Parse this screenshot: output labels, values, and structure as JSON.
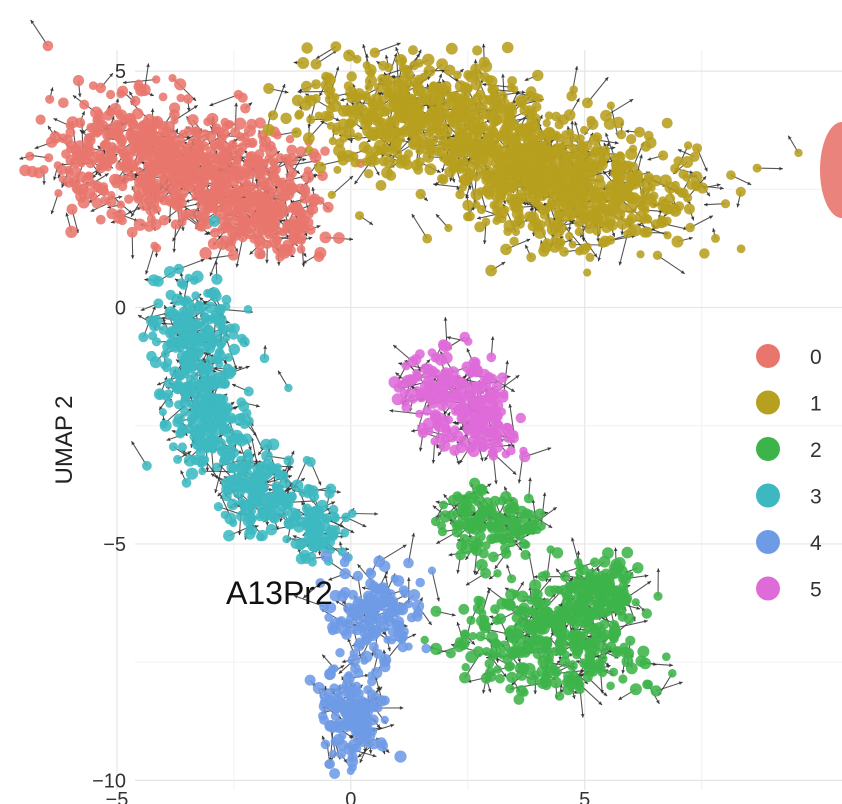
{
  "chart_data": {
    "type": "scatter",
    "title": "",
    "panel_label": "A13Pr2",
    "xlabel": "",
    "ylabel": "UMAP 2",
    "xlim": [
      -7.5,
      10.5
    ],
    "ylim": [
      -10.5,
      5.7
    ],
    "x_ticks": [
      -5,
      0,
      5
    ],
    "x_tick_labels": [
      "−5",
      "0",
      "5"
    ],
    "y_ticks": [
      5,
      0,
      -5,
      -10
    ],
    "y_tick_labels": [
      "5",
      "0",
      "−5",
      "−10"
    ],
    "grid": true,
    "overlay": "velocity arrows",
    "legend_placement": "right",
    "legend": [
      {
        "label": "0",
        "color": "#E8766D"
      },
      {
        "label": "1",
        "color": "#B79F1F"
      },
      {
        "label": "2",
        "color": "#3DB44A"
      },
      {
        "label": "3",
        "color": "#3EB8C0"
      },
      {
        "label": "4",
        "color": "#6E9BE6"
      },
      {
        "label": "5",
        "color": "#DE6BD8"
      }
    ],
    "clusters": [
      {
        "label": "0",
        "color": "#E8766D",
        "regions": [
          [
            -4.6,
            3.2,
            1.6,
            1.2
          ],
          [
            -2.6,
            2.7,
            1.5,
            1.1
          ],
          [
            -1.6,
            1.8,
            0.9,
            0.6
          ]
        ]
      },
      {
        "label": "1",
        "color": "#B79F1F",
        "regions": [
          [
            1.6,
            4.0,
            2.3,
            1.1
          ],
          [
            5.2,
            2.5,
            2.1,
            1.1
          ],
          [
            3.5,
            3.1,
            1.5,
            1.0
          ]
        ]
      },
      {
        "label": "2",
        "color": "#3DB44A",
        "regions": [
          [
            3.0,
            -4.6,
            1.0,
            0.6
          ],
          [
            4.3,
            -7.0,
            1.7,
            1.0
          ],
          [
            5.3,
            -6.0,
            0.8,
            0.6
          ]
        ]
      },
      {
        "label": "3",
        "color": "#3EB8C0",
        "regions": [
          [
            -3.3,
            -0.7,
            0.8,
            1.2
          ],
          [
            -3.0,
            -2.4,
            0.8,
            1.0
          ],
          [
            -1.8,
            -3.9,
            0.9,
            0.8
          ],
          [
            -0.8,
            -4.6,
            0.5,
            0.6
          ]
        ]
      },
      {
        "label": "4",
        "color": "#6E9BE6",
        "regions": [
          [
            0.5,
            -6.5,
            0.9,
            0.8
          ],
          [
            0.0,
            -8.6,
            0.7,
            0.9
          ]
        ]
      },
      {
        "label": "5",
        "color": "#DE6BD8",
        "regions": [
          [
            2.2,
            -1.8,
            1.0,
            0.8
          ],
          [
            2.8,
            -2.6,
            0.7,
            0.5
          ]
        ]
      }
    ]
  }
}
